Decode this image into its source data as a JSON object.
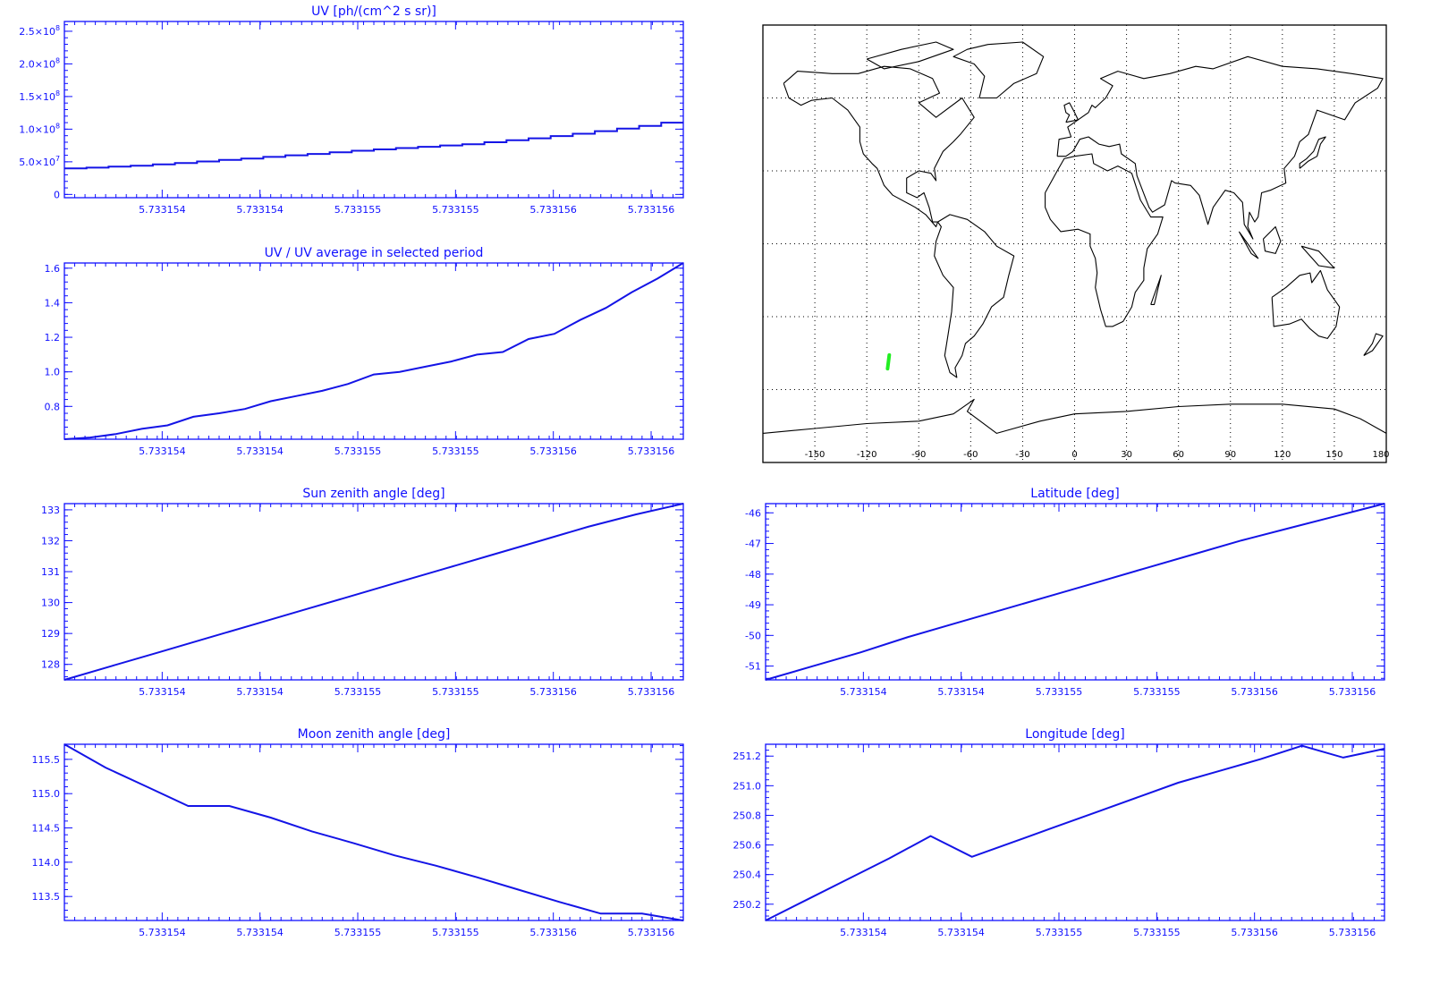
{
  "colors": {
    "axis": "#1010ff",
    "series": "#1414e6",
    "map_frame": "#000000",
    "map_coast": "#000000",
    "map_grid": "#000000",
    "track": "#22ee22"
  },
  "chart_data": [
    {
      "id": "uv",
      "type": "line",
      "step": true,
      "title": "UV [ph/(cm^2 s sr)]",
      "x_tick_labels": [
        "5.733154",
        "5.733154",
        "5.733155",
        "5.733155",
        "5.733156",
        "5.733156"
      ],
      "y_ticks": [
        {
          "value": 0,
          "label": "0"
        },
        {
          "value": 50000000,
          "label": "5.0×10",
          "exp": "7"
        },
        {
          "value": 100000000,
          "label": "1.0×10",
          "exp": "8"
        },
        {
          "value": 150000000,
          "label": "1.5×10",
          "exp": "8"
        },
        {
          "value": 200000000,
          "label": "2.0×10",
          "exp": "8"
        },
        {
          "value": 250000000,
          "label": "2.5×10",
          "exp": "8"
        }
      ],
      "ylim": [
        -5000000,
        265000000
      ],
      "series": [
        {
          "values": [
            40000000,
            41000000,
            42500000,
            44000000,
            46000000,
            48000000,
            50500000,
            53000000,
            55000000,
            57500000,
            60000000,
            62000000,
            64500000,
            67000000,
            69000000,
            71000000,
            73000000,
            75000000,
            77000000,
            80000000,
            83000000,
            86000000,
            89500000,
            93000000,
            97000000,
            101000000,
            105000000,
            110000000
          ]
        }
      ]
    },
    {
      "id": "uv-ratio",
      "type": "line",
      "title": "UV / UV average in selected period",
      "x_tick_labels": [
        "5.733154",
        "5.733154",
        "5.733155",
        "5.733155",
        "5.733156",
        "5.733156"
      ],
      "y_ticks": [
        {
          "value": 0.8,
          "label": "0.8"
        },
        {
          "value": 1.0,
          "label": "1.0"
        },
        {
          "value": 1.2,
          "label": "1.2"
        },
        {
          "value": 1.4,
          "label": "1.4"
        },
        {
          "value": 1.6,
          "label": "1.6"
        }
      ],
      "ylim": [
        0.61,
        1.63
      ],
      "series": [
        {
          "values": [
            0.61,
            0.62,
            0.64,
            0.67,
            0.69,
            0.74,
            0.76,
            0.785,
            0.83,
            0.86,
            0.89,
            0.93,
            0.985,
            1.0,
            1.03,
            1.06,
            1.1,
            1.115,
            1.19,
            1.22,
            1.3,
            1.37,
            1.46,
            1.54,
            1.63
          ]
        }
      ]
    },
    {
      "id": "sun-zenith",
      "type": "line",
      "title": "Sun zenith angle [deg]",
      "x_tick_labels": [
        "5.733154",
        "5.733154",
        "5.733155",
        "5.733155",
        "5.733156",
        "5.733156"
      ],
      "y_ticks": [
        {
          "value": 128,
          "label": "128"
        },
        {
          "value": 129,
          "label": "129"
        },
        {
          "value": 130,
          "label": "130"
        },
        {
          "value": 131,
          "label": "131"
        },
        {
          "value": 132,
          "label": "132"
        },
        {
          "value": 133,
          "label": "133"
        }
      ],
      "ylim": [
        127.5,
        133.2
      ],
      "series": [
        {
          "values": [
            127.5,
            127.95,
            128.4,
            128.85,
            129.3,
            129.75,
            130.2,
            130.65,
            131.1,
            131.55,
            132.0,
            132.45,
            132.85,
            133.2
          ]
        }
      ]
    },
    {
      "id": "moon-zenith",
      "type": "line",
      "title": "Moon zenith angle [deg]",
      "x_tick_labels": [
        "5.733154",
        "5.733154",
        "5.733155",
        "5.733155",
        "5.733156",
        "5.733156"
      ],
      "y_ticks": [
        {
          "value": 113.5,
          "label": "113.5"
        },
        {
          "value": 114.0,
          "label": "114.0"
        },
        {
          "value": 114.5,
          "label": "114.5"
        },
        {
          "value": 115.0,
          "label": "115.0"
        },
        {
          "value": 115.5,
          "label": "115.5"
        }
      ],
      "ylim": [
        113.15,
        115.72
      ],
      "series": [
        {
          "values": [
            115.72,
            115.38,
            115.1,
            114.82,
            114.82,
            114.65,
            114.45,
            114.28,
            114.1,
            113.95,
            113.78,
            113.6,
            113.42,
            113.25,
            113.25,
            113.15
          ]
        }
      ]
    },
    {
      "id": "latitude",
      "type": "line",
      "title": "Latitude [deg]",
      "x_tick_labels": [
        "5.733154",
        "5.733154",
        "5.733155",
        "5.733155",
        "5.733156",
        "5.733156"
      ],
      "y_ticks": [
        {
          "value": -51,
          "label": "-51"
        },
        {
          "value": -50,
          "label": "-50"
        },
        {
          "value": -49,
          "label": "-49"
        },
        {
          "value": -48,
          "label": "-48"
        },
        {
          "value": -47,
          "label": "-47"
        },
        {
          "value": -46,
          "label": "-46"
        }
      ],
      "ylim": [
        -51.45,
        -45.7
      ],
      "series": [
        {
          "values": [
            -51.45,
            -51.0,
            -50.55,
            -50.05,
            -49.6,
            -49.15,
            -48.7,
            -48.25,
            -47.8,
            -47.35,
            -46.9,
            -46.5,
            -46.1,
            -45.7
          ]
        }
      ]
    },
    {
      "id": "longitude",
      "type": "line",
      "title": "Longitude [deg]",
      "x_tick_labels": [
        "5.733154",
        "5.733154",
        "5.733155",
        "5.733155",
        "5.733156",
        "5.733156"
      ],
      "y_ticks": [
        {
          "value": 250.2,
          "label": "250.2"
        },
        {
          "value": 250.4,
          "label": "250.4"
        },
        {
          "value": 250.6,
          "label": "250.6"
        },
        {
          "value": 250.8,
          "label": "250.8"
        },
        {
          "value": 251.0,
          "label": "251.0"
        },
        {
          "value": 251.2,
          "label": "251.2"
        }
      ],
      "ylim": [
        250.09,
        251.28
      ],
      "series": [
        {
          "values": [
            250.09,
            250.23,
            250.37,
            250.51,
            250.66,
            250.52,
            250.62,
            250.72,
            250.82,
            250.92,
            251.02,
            251.1,
            251.18,
            251.27,
            251.19,
            251.25
          ]
        }
      ]
    }
  ],
  "map": {
    "x_tick_labels": [
      "-150",
      "-120",
      "-90",
      "-60",
      "-30",
      "0",
      "30",
      "60",
      "90",
      "120",
      "150",
      "180"
    ],
    "track": [
      [
        -108,
        -51.4
      ],
      [
        -107,
        -45.8
      ]
    ]
  }
}
